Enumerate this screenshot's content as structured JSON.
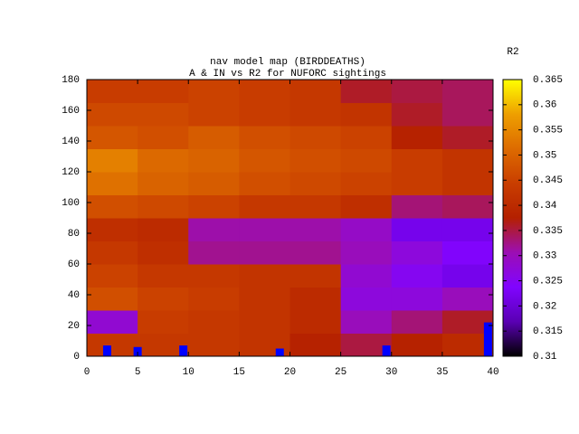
{
  "chart_data": {
    "type": "heatmap",
    "title": "nav model map (BIRDDEATHS)",
    "subtitle": "A & IN vs R2 for NUFORC sightings",
    "colorbar_label": "R2",
    "x_edges": [
      0,
      5,
      10,
      15,
      20,
      25,
      30,
      35,
      40
    ],
    "y_edges": [
      0,
      15,
      30,
      45,
      60,
      75,
      90,
      105,
      120,
      135,
      150,
      165,
      180
    ],
    "z": [
      [
        0.343,
        0.343,
        0.343,
        0.342,
        0.338,
        0.335,
        0.338,
        0.34
      ],
      [
        0.328,
        0.344,
        0.343,
        0.342,
        0.34,
        0.33,
        0.333,
        0.336
      ],
      [
        0.347,
        0.345,
        0.344,
        0.342,
        0.34,
        0.327,
        0.327,
        0.33
      ],
      [
        0.345,
        0.343,
        0.343,
        0.342,
        0.342,
        0.328,
        0.325,
        0.322
      ],
      [
        0.343,
        0.341,
        0.332,
        0.332,
        0.332,
        0.33,
        0.327,
        0.324
      ],
      [
        0.341,
        0.34,
        0.331,
        0.331,
        0.331,
        0.329,
        0.322,
        0.322
      ],
      [
        0.347,
        0.346,
        0.345,
        0.343,
        0.343,
        0.341,
        0.333,
        0.334
      ],
      [
        0.352,
        0.35,
        0.349,
        0.347,
        0.346,
        0.345,
        0.344,
        0.342
      ],
      [
        0.354,
        0.351,
        0.35,
        0.348,
        0.347,
        0.346,
        0.344,
        0.342
      ],
      [
        0.348,
        0.347,
        0.349,
        0.347,
        0.346,
        0.345,
        0.338,
        0.336
      ],
      [
        0.346,
        0.346,
        0.345,
        0.344,
        0.343,
        0.342,
        0.336,
        0.334
      ],
      [
        0.344,
        0.344,
        0.345,
        0.344,
        0.343,
        0.336,
        0.335,
        0.334
      ]
    ],
    "markers": {
      "x": [
        2,
        5,
        9.5,
        19,
        29.5,
        39.5
      ],
      "values": [
        7,
        6,
        7,
        5,
        7,
        22
      ],
      "color": "#0000ff"
    },
    "palette": [
      "#000000",
      "#5a00b4",
      "#8004ff",
      "#9c0eb4",
      "#b42000",
      "#c93e00",
      "#dd6b00",
      "#ee9f00",
      "#ffff00"
    ],
    "xlim": [
      0,
      40
    ],
    "xticks": [
      0,
      5,
      10,
      15,
      20,
      25,
      30,
      35,
      40
    ],
    "ylim": [
      0,
      180
    ],
    "yticks": [
      0,
      20,
      40,
      60,
      80,
      100,
      120,
      140,
      160,
      180
    ],
    "zlim": [
      0.31,
      0.365
    ],
    "zticks": [
      0.31,
      0.315,
      0.32,
      0.325,
      0.33,
      0.335,
      0.34,
      0.345,
      0.35,
      0.355,
      0.36,
      0.365
    ]
  }
}
